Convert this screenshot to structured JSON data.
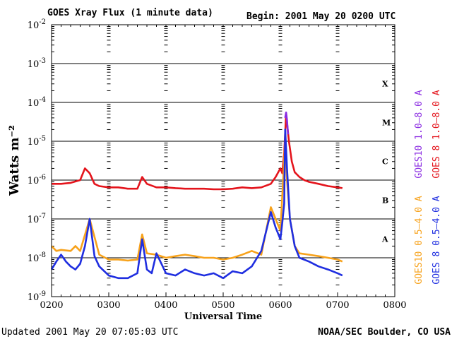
{
  "header": {
    "title": "GOES Xray Flux (1 minute data)",
    "begin": "Begin: 2001 May 20 0200 UTC"
  },
  "footer": {
    "updated": "Updated 2001 May 20 07:05:03 UTC",
    "credit": "NOAA/SEC Boulder, CO USA"
  },
  "colors": {
    "goes10_long": "#8a2be2",
    "goes8_long": "#e4141c",
    "goes10_short": "#f7a21b",
    "goes8_short": "#1f2ee0",
    "grid": "#000000"
  },
  "chart_data": {
    "type": "line",
    "title": "GOES Xray Flux (1 minute data)",
    "xlabel": "Universal Time",
    "ylabel": "Watts m⁻²",
    "xlim": [
      "0200",
      "0800"
    ],
    "ylim": [
      1e-09,
      0.01
    ],
    "yscale": "log",
    "x_ticks": [
      "0200",
      "0300",
      "0400",
      "0500",
      "0600",
      "0700",
      "0800"
    ],
    "y_ticks": [
      {
        "base": "10",
        "exp": "-2"
      },
      {
        "base": "10",
        "exp": "-3"
      },
      {
        "base": "10",
        "exp": "-4"
      },
      {
        "base": "10",
        "exp": "-5"
      },
      {
        "base": "10",
        "exp": "-6"
      },
      {
        "base": "10",
        "exp": "-7"
      },
      {
        "base": "10",
        "exp": "-8"
      },
      {
        "base": "10",
        "exp": "-9"
      }
    ],
    "flare_classes": [
      {
        "label": "X",
        "flux": 0.0001
      },
      {
        "label": "M",
        "flux": 1e-05
      },
      {
        "label": "C",
        "flux": 1e-06
      },
      {
        "label": "B",
        "flux": 1e-07
      },
      {
        "label": "A",
        "flux": 1e-08
      }
    ],
    "legend": [
      {
        "text": "GOES10 1.0–8.0 A",
        "color": "#8a2be2"
      },
      {
        "text": "GOES 8 1.0–8.0 A",
        "color": "#e4141c"
      },
      {
        "text": "GOES10 0.5–4.0 A",
        "color": "#f7a21b"
      },
      {
        "text": "GOES 8 0.5–4.0 A",
        "color": "#1f2ee0"
      }
    ],
    "series": [
      {
        "name": "GOES 8 1.0–8.0 A",
        "color": "#e4141c",
        "x": [
          "0200",
          "0210",
          "0220",
          "0230",
          "0235",
          "0240",
          "0245",
          "0250",
          "0300",
          "0310",
          "0320",
          "0330",
          "0335",
          "0340",
          "0350",
          "0400",
          "0410",
          "0420",
          "0430",
          "0440",
          "0450",
          "0500",
          "0510",
          "0520",
          "0530",
          "0540",
          "0550",
          "0555",
          "0600",
          "0602",
          "0604",
          "0606",
          "0607",
          "0609",
          "0612",
          "0615",
          "0620",
          "0625",
          "0630",
          "0640",
          "0650",
          "0700",
          "0705"
        ],
        "y": [
          8e-07,
          8e-07,
          8.5e-07,
          1e-06,
          2e-06,
          1.5e-06,
          8e-07,
          7e-07,
          6.5e-07,
          6.5e-07,
          6e-07,
          6e-07,
          1.2e-06,
          8e-07,
          6.5e-07,
          6.5e-07,
          6.2e-07,
          6e-07,
          6e-07,
          6e-07,
          5.8e-07,
          5.8e-07,
          6e-07,
          6.5e-07,
          6.2e-07,
          6.5e-07,
          8e-07,
          1.2e-06,
          2e-06,
          1.5e-06,
          5e-06,
          5e-05,
          3e-05,
          1e-05,
          3e-06,
          1.6e-06,
          1.2e-06,
          1e-06,
          9e-07,
          8e-07,
          7e-07,
          6.5e-07,
          6.2e-07
        ]
      },
      {
        "name": "GOES10 1.0–8.0 A",
        "color": "#8a2be2",
        "x": [
          "0605",
          "0606",
          "0607",
          "0608"
        ],
        "y": [
          4e-05,
          5.5e-05,
          3.5e-05,
          1.5e-05
        ]
      },
      {
        "name": "GOES10 0.5–4.0 A",
        "color": "#f7a21b",
        "x": [
          "0200",
          "0205",
          "0210",
          "0220",
          "0225",
          "0230",
          "0240",
          "0250",
          "0300",
          "0310",
          "0320",
          "0330",
          "0335",
          "0340",
          "0350",
          "0400",
          "0410",
          "0420",
          "0430",
          "0440",
          "0450",
          "0500",
          "0510",
          "0520",
          "0530",
          "0540",
          "0550",
          "0600",
          "0602",
          "0605",
          "0607",
          "0610",
          "0615",
          "0620",
          "0630",
          "0640",
          "0650",
          "0700",
          "0705"
        ],
        "y": [
          2e-08,
          1.5e-08,
          1.6e-08,
          1.5e-08,
          2e-08,
          1.5e-08,
          1e-07,
          1.2e-08,
          9e-09,
          9e-09,
          8.5e-09,
          9e-09,
          4e-08,
          1.3e-08,
          1.2e-08,
          1e-08,
          1.1e-08,
          1.2e-08,
          1.1e-08,
          1e-08,
          1e-08,
          9e-09,
          1e-08,
          1.2e-08,
          1.5e-08,
          1.2e-08,
          2e-07,
          5e-08,
          4e-07,
          1e-05,
          1e-06,
          1e-07,
          2e-08,
          1.3e-08,
          1.2e-08,
          1.1e-08,
          1e-08,
          9e-09,
          8e-09
        ]
      },
      {
        "name": "GOES 8 0.5–4.0 A",
        "color": "#1f2ee0",
        "x": [
          "0200",
          "0205",
          "0210",
          "0215",
          "0220",
          "0225",
          "0230",
          "0235",
          "0240",
          "0245",
          "0250",
          "0300",
          "0310",
          "0320",
          "0330",
          "0335",
          "0340",
          "0345",
          "0350",
          "0400",
          "0410",
          "0420",
          "0430",
          "0440",
          "0450",
          "0500",
          "0510",
          "0520",
          "0530",
          "0540",
          "0550",
          "0555",
          "0600",
          "0602",
          "0604",
          "0605",
          "0607",
          "0610",
          "0615",
          "0620",
          "0630",
          "0640",
          "0650",
          "0700",
          "0705"
        ],
        "y": [
          5e-09,
          8e-09,
          1.2e-08,
          8e-09,
          6e-09,
          5e-09,
          7e-09,
          2e-08,
          1e-07,
          1.1e-08,
          6e-09,
          3.5e-09,
          3e-09,
          3e-09,
          4e-09,
          3e-08,
          5e-09,
          4e-09,
          1.3e-08,
          4e-09,
          3.5e-09,
          5e-09,
          4e-09,
          3.5e-09,
          4e-09,
          3e-09,
          4.5e-09,
          4e-09,
          6e-09,
          1.5e-08,
          1.5e-07,
          6e-08,
          3e-08,
          8e-08,
          2.5e-07,
          2e-05,
          2e-06,
          1e-07,
          2e-08,
          1e-08,
          8e-09,
          6e-09,
          5e-09,
          4e-09,
          3.5e-09
        ]
      }
    ]
  }
}
